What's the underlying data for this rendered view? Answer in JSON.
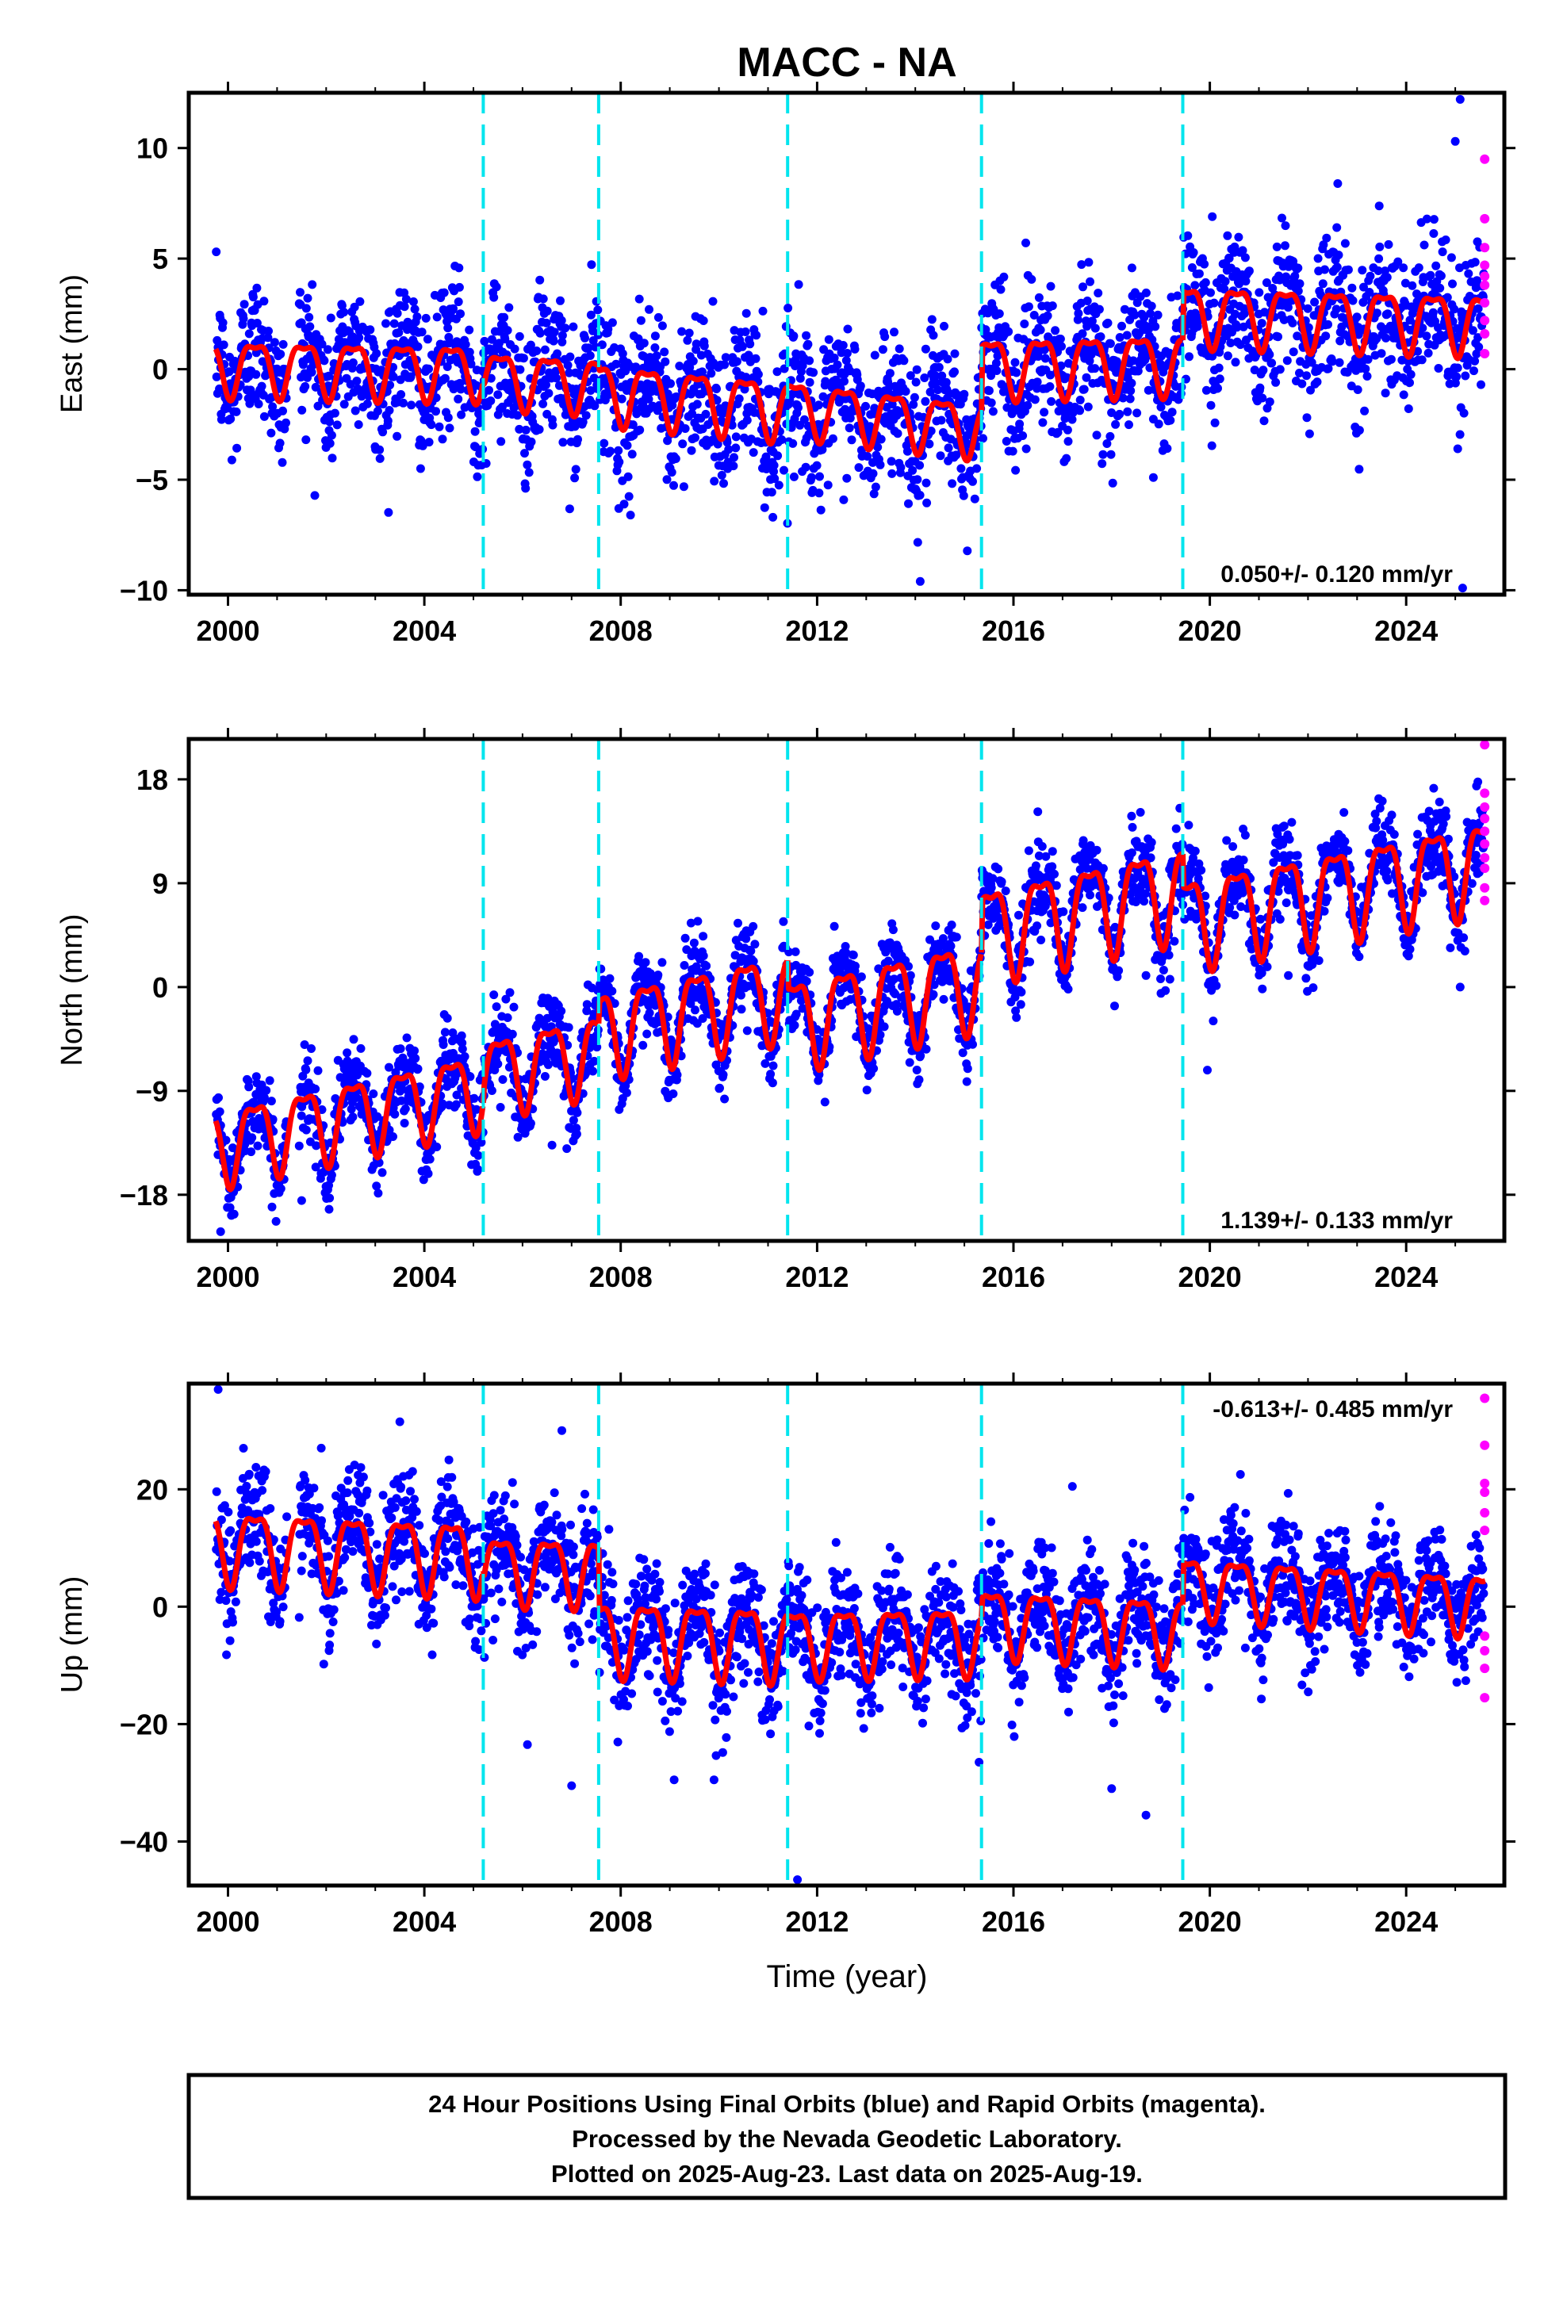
{
  "title": "MACC - NA",
  "xlabel": "Time (year)",
  "caption": [
    "24 Hour Positions Using Final Orbits (blue) and Rapid Orbits (magenta).",
    "Processed by the Nevada Geodetic Laboratory.",
    "Plotted on 2025-Aug-23. Last data on 2025-Aug-19."
  ],
  "colors": {
    "final_orbits": "#0000ff",
    "rapid_orbits": "#ff00ff",
    "model": "#ff0000",
    "offsets": "#00e5ee",
    "frame": "#000000"
  },
  "chart_data": [
    {
      "type": "scatter",
      "component": "east",
      "ylabel": "East (mm)",
      "xlim": [
        1999.2,
        2026.0
      ],
      "ylim": [
        -10.2,
        12.5
      ],
      "x_ticks": [
        2000,
        2004,
        2008,
        2012,
        2016,
        2020,
        2024
      ],
      "y_ticks": [
        -10,
        -5,
        0,
        5,
        10
      ],
      "rate": "0.050+/- 0.120 mm/yr",
      "rate_position": "bottom-right",
      "offsets": [
        2005.2,
        2007.55,
        2011.4,
        2015.35,
        2019.45
      ],
      "model_segments": [
        {
          "start": 1999.75,
          "end": 2005.2,
          "level_start": 0.2,
          "level_end": 0.0,
          "amplitude": 1.2
        },
        {
          "start": 2005.2,
          "end": 2007.55,
          "level_start": -0.3,
          "level_end": -0.6,
          "amplitude": 1.2
        },
        {
          "start": 2007.55,
          "end": 2011.4,
          "level_start": -0.9,
          "level_end": -1.7,
          "amplitude": 1.3
        },
        {
          "start": 2011.4,
          "end": 2015.35,
          "level_start": -1.6,
          "level_end": -2.6,
          "amplitude": 1.2
        },
        {
          "start": 2015.35,
          "end": 2019.45,
          "level_start": 0.2,
          "level_end": 0.4,
          "amplitude": 1.3
        },
        {
          "start": 2019.45,
          "end": 2025.62,
          "level_start": 2.6,
          "level_end": 2.2,
          "amplitude": 1.3
        }
      ],
      "scatter_sd": 1.6,
      "rapid_points": [
        {
          "x": 2025.6,
          "y": 9.5
        },
        {
          "x": 2025.6,
          "y": 6.8
        },
        {
          "x": 2025.6,
          "y": 5.5
        },
        {
          "x": 2025.6,
          "y": 4.7
        },
        {
          "x": 2025.6,
          "y": 4.2
        },
        {
          "x": 2025.6,
          "y": 3.8
        },
        {
          "x": 2025.6,
          "y": 3.0
        },
        {
          "x": 2025.6,
          "y": 2.2
        },
        {
          "x": 2025.6,
          "y": 1.6
        },
        {
          "x": 2025.6,
          "y": 0.7
        }
      ],
      "outliers": [
        {
          "x": 2025.1,
          "y": 12.2
        },
        {
          "x": 2025.0,
          "y": 10.3
        },
        {
          "x": 2025.05,
          "y": -3.6
        },
        {
          "x": 2014.1,
          "y": -9.6
        },
        {
          "x": 2025.15,
          "y": -9.9
        },
        {
          "x": 2018.85,
          "y": -4.9
        },
        {
          "x": 2020.05,
          "y": 6.9
        },
        {
          "x": 2008.2,
          "y": -6.6
        },
        {
          "x": 2011.1,
          "y": -6.7
        }
      ]
    },
    {
      "type": "scatter",
      "component": "north",
      "ylabel": "North (mm)",
      "xlim": [
        1999.2,
        2026.0
      ],
      "ylim": [
        -22.0,
        21.5
      ],
      "x_ticks": [
        2000,
        2004,
        2008,
        2012,
        2016,
        2020,
        2024
      ],
      "y_ticks": [
        -18,
        -9,
        0,
        9,
        18
      ],
      "rate": "1.139+/- 0.133 mm/yr",
      "rate_position": "bottom-right",
      "offsets": [
        2005.2,
        2007.55,
        2011.4,
        2015.35,
        2019.45
      ],
      "model_segments": [
        {
          "start": 1999.75,
          "end": 2005.2,
          "level_start": -13.5,
          "level_end": -8.5,
          "amplitude": 3.2
        },
        {
          "start": 2005.2,
          "end": 2007.55,
          "level_start": -7.5,
          "level_end": -5.3,
          "amplitude": 3.3
        },
        {
          "start": 2007.55,
          "end": 2011.4,
          "level_start": -3.6,
          "level_end": -0.2,
          "amplitude": 3.6
        },
        {
          "start": 2011.4,
          "end": 2015.35,
          "level_start": -2.8,
          "level_end": 0.8,
          "amplitude": 3.7
        },
        {
          "start": 2015.35,
          "end": 2019.45,
          "level_start": 5.0,
          "level_end": 8.8,
          "amplitude": 3.9
        },
        {
          "start": 2019.45,
          "end": 2025.62,
          "level_start": 6.0,
          "level_end": 11.0,
          "amplitude": 3.8
        }
      ],
      "scatter_sd": 1.8,
      "rapid_points": [
        {
          "x": 2025.6,
          "y": 21.0
        },
        {
          "x": 2025.6,
          "y": 16.8
        },
        {
          "x": 2025.6,
          "y": 15.6
        },
        {
          "x": 2025.6,
          "y": 14.6
        },
        {
          "x": 2025.6,
          "y": 13.5
        },
        {
          "x": 2025.6,
          "y": 12.4
        },
        {
          "x": 2025.6,
          "y": 11.2
        },
        {
          "x": 2025.6,
          "y": 10.3
        },
        {
          "x": 2025.6,
          "y": 8.6
        },
        {
          "x": 2025.6,
          "y": 7.5
        }
      ],
      "outliers": [
        {
          "x": 2019.95,
          "y": -7.2
        },
        {
          "x": 2025.1,
          "y": 0.0
        },
        {
          "x": 2018.7,
          "y": 1.0
        },
        {
          "x": 2006.6,
          "y": -13.7
        },
        {
          "x": 2006.9,
          "y": -14.0
        },
        {
          "x": 1999.85,
          "y": -21.2
        },
        {
          "x": 2001.5,
          "y": -18.5
        },
        {
          "x": 2024.9,
          "y": 3.4
        },
        {
          "x": 2021.6,
          "y": 1.0
        }
      ]
    },
    {
      "type": "scatter",
      "component": "up",
      "ylabel": "Up (mm)",
      "xlim": [
        1999.2,
        2026.0
      ],
      "ylim": [
        -47.5,
        38.0
      ],
      "x_ticks": [
        2000,
        2004,
        2008,
        2012,
        2016,
        2020,
        2024
      ],
      "y_ticks": [
        -40,
        -20,
        0,
        20
      ],
      "rate": "-0.613+/- 0.485 mm/yr",
      "rate_position": "top-right",
      "offsets": [
        2005.2,
        2007.55,
        2011.4,
        2015.35,
        2019.45
      ],
      "model_segments": [
        {
          "start": 1999.75,
          "end": 2005.2,
          "level_start": 11.0,
          "level_end": 9.0,
          "amplitude": 6.0
        },
        {
          "start": 2005.2,
          "end": 2007.55,
          "level_start": 7.0,
          "level_end": 6.5,
          "amplitude": 5.5
        },
        {
          "start": 2007.55,
          "end": 2011.4,
          "level_start": -4.5,
          "level_end": -5.5,
          "amplitude": 6.0
        },
        {
          "start": 2011.4,
          "end": 2015.35,
          "level_start": -5.5,
          "level_end": -5.0,
          "amplitude": 5.5
        },
        {
          "start": 2015.35,
          "end": 2019.45,
          "level_start": -2.0,
          "level_end": -3.5,
          "amplitude": 5.5
        },
        {
          "start": 2019.45,
          "end": 2025.62,
          "level_start": 4.0,
          "level_end": 1.0,
          "amplitude": 5.0
        }
      ],
      "scatter_sd": 4.8,
      "rapid_points": [
        {
          "x": 2025.6,
          "y": 35.5
        },
        {
          "x": 2025.6,
          "y": 27.5
        },
        {
          "x": 2025.6,
          "y": 21.0
        },
        {
          "x": 2025.6,
          "y": 19.5
        },
        {
          "x": 2025.6,
          "y": 16.0
        },
        {
          "x": 2025.6,
          "y": 13.0
        },
        {
          "x": 2025.6,
          "y": -5.0
        },
        {
          "x": 2025.6,
          "y": -7.5
        },
        {
          "x": 2025.6,
          "y": -10.5
        },
        {
          "x": 2025.6,
          "y": -15.5
        }
      ],
      "outliers": [
        {
          "x": 1999.8,
          "y": 37.0
        },
        {
          "x": 2003.5,
          "y": 31.5
        },
        {
          "x": 2006.8,
          "y": 30.0
        },
        {
          "x": 2007.0,
          "y": -30.5
        },
        {
          "x": 2006.1,
          "y": -23.5
        },
        {
          "x": 2009.9,
          "y": -29.5
        },
        {
          "x": 2011.6,
          "y": -46.5
        },
        {
          "x": 2018.7,
          "y": -35.5
        },
        {
          "x": 2018.0,
          "y": -31.0
        },
        {
          "x": 2015.3,
          "y": -26.5
        },
        {
          "x": 2017.2,
          "y": 20.5
        },
        {
          "x": 2004.5,
          "y": 25.0
        },
        {
          "x": 2001.9,
          "y": 27.0
        }
      ]
    }
  ]
}
